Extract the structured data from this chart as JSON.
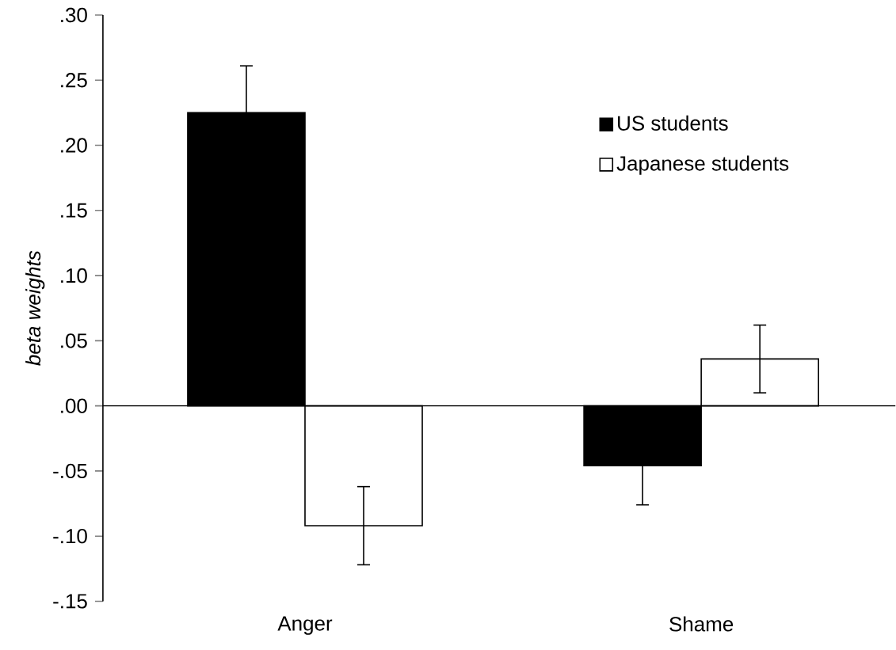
{
  "chart_data": {
    "type": "bar",
    "ylabel": "beta weights",
    "categories": [
      "Anger",
      "Shame"
    ],
    "series": [
      {
        "name": "US students",
        "color": "#000000",
        "values": [
          0.225,
          -0.046
        ],
        "errors": [
          0.036,
          0.03
        ]
      },
      {
        "name": "Japanese students",
        "color": "#ffffff",
        "values": [
          -0.092,
          0.036
        ],
        "errors": [
          0.03,
          0.026
        ]
      }
    ],
    "ylim": [
      -0.15,
      0.3
    ],
    "yticks": [
      {
        "value": -0.15,
        "label": "-.15"
      },
      {
        "value": -0.1,
        "label": "-.10"
      },
      {
        "value": -0.05,
        "label": "-.05"
      },
      {
        "value": 0,
        "label": ".00"
      },
      {
        "value": 0.05,
        "label": ".05"
      },
      {
        "value": 0.1,
        "label": ".10"
      },
      {
        "value": 0.15,
        "label": ".15"
      },
      {
        "value": 0.2,
        "label": ".20"
      },
      {
        "value": 0.25,
        "label": ".25"
      },
      {
        "value": 0.3,
        "label": ".30"
      }
    ],
    "legend": "top right"
  }
}
